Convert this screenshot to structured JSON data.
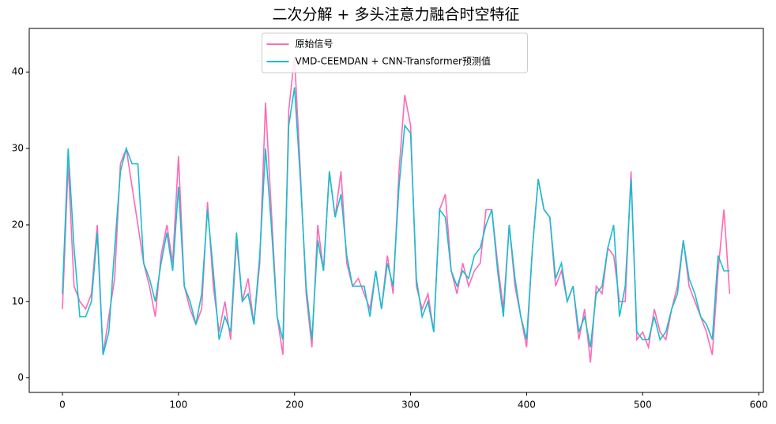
{
  "chart_data": {
    "type": "line",
    "title": "二次分解 + 多头注意力融合时空特征",
    "x": [
      0,
      5,
      10,
      15,
      20,
      25,
      30,
      35,
      40,
      45,
      50,
      55,
      60,
      65,
      70,
      75,
      80,
      85,
      90,
      95,
      100,
      105,
      110,
      115,
      120,
      125,
      130,
      135,
      140,
      145,
      150,
      155,
      160,
      165,
      170,
      175,
      180,
      185,
      190,
      195,
      200,
      205,
      210,
      215,
      220,
      225,
      230,
      235,
      240,
      245,
      250,
      255,
      260,
      265,
      270,
      275,
      280,
      285,
      290,
      295,
      300,
      305,
      310,
      315,
      320,
      325,
      330,
      335,
      340,
      345,
      350,
      355,
      360,
      365,
      370,
      375,
      380,
      385,
      390,
      395,
      400,
      405,
      410,
      415,
      420,
      425,
      430,
      435,
      440,
      445,
      450,
      455,
      460,
      465,
      470,
      475,
      480,
      485,
      490,
      495,
      500,
      505,
      510,
      515,
      520,
      525,
      530,
      535,
      540,
      545,
      550,
      555,
      560,
      565,
      570,
      575
    ],
    "series": [
      {
        "name": "原始信号",
        "color": "#ff69b4",
        "values": [
          9,
          28,
          12,
          10,
          9,
          11,
          20,
          3,
          8,
          13,
          28,
          30,
          25,
          20,
          15,
          12,
          8,
          16,
          20,
          15,
          29,
          12,
          9,
          7,
          9,
          23,
          12,
          6,
          10,
          5,
          18,
          10,
          13,
          7,
          15,
          36,
          22,
          8,
          3,
          35,
          42,
          27,
          11,
          4,
          20,
          14,
          27,
          21,
          27,
          15,
          12,
          13,
          11,
          9,
          14,
          9,
          16,
          11,
          27,
          37,
          33,
          12,
          9,
          11,
          6,
          22,
          24,
          14,
          11,
          15,
          12,
          14,
          15,
          22,
          22,
          15,
          9,
          20,
          12,
          8,
          4,
          17,
          26,
          22,
          21,
          12,
          14,
          10,
          12,
          5,
          9,
          2,
          12,
          11,
          17,
          16,
          10,
          10,
          27,
          5,
          6,
          4,
          9,
          6,
          5,
          9,
          12,
          18,
          12,
          10,
          8,
          6,
          3,
          14,
          22,
          11
        ]
      },
      {
        "name": "VMD-CEEMDAN + CNN-Transformer预测值",
        "color": "#17becf",
        "values": [
          11,
          30,
          17,
          8,
          8,
          10,
          19,
          3,
          6,
          17,
          27,
          30,
          28,
          28,
          15,
          13,
          10,
          15,
          19,
          14,
          25,
          12,
          10,
          7,
          11,
          22,
          14,
          5,
          8,
          6,
          19,
          10,
          11,
          7,
          16,
          30,
          20,
          8,
          5,
          33,
          38,
          26,
          12,
          5,
          18,
          14,
          27,
          21,
          24,
          16,
          12,
          12,
          12,
          8,
          14,
          9,
          15,
          12,
          25,
          33,
          32,
          13,
          8,
          10,
          6,
          22,
          21,
          14,
          12,
          14,
          13,
          16,
          17,
          20,
          22,
          14,
          8,
          20,
          13,
          8,
          5,
          17,
          26,
          22,
          21,
          13,
          15,
          10,
          12,
          6,
          8,
          4,
          11,
          12,
          17,
          20,
          8,
          12,
          26,
          6,
          5,
          5,
          8,
          5,
          6,
          9,
          11,
          18,
          13,
          11,
          8,
          7,
          5,
          16,
          14,
          14
        ]
      }
    ],
    "xlim": [
      -28.6,
      604
    ],
    "ylim": [
      -1.9,
      45.7
    ],
    "xticks": [
      0,
      100,
      200,
      300,
      400,
      500,
      600
    ],
    "yticks": [
      0,
      10,
      20,
      30,
      40
    ],
    "legend": "upper center"
  }
}
